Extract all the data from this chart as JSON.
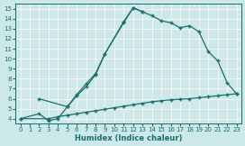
{
  "xlabel": "Humidex (Indice chaleur)",
  "bg_color": "#cce8e8",
  "line_color": "#1a6e6e",
  "grid_color": "#b0d0d0",
  "pink_grid": "#c8a0a0",
  "xlim": [
    -0.5,
    23.5
  ],
  "ylim": [
    3.5,
    15.5
  ],
  "xticks": [
    0,
    1,
    2,
    3,
    4,
    5,
    6,
    7,
    8,
    9,
    10,
    11,
    12,
    13,
    14,
    15,
    16,
    17,
    18,
    19,
    20,
    21,
    22,
    23
  ],
  "yticks": [
    4,
    5,
    6,
    7,
    8,
    9,
    10,
    11,
    12,
    13,
    14,
    15
  ],
  "line1_x": [
    0,
    2,
    3,
    4,
    5,
    6,
    7,
    8,
    9,
    11,
    12,
    13,
    14,
    15,
    16,
    17,
    18,
    19,
    20,
    21,
    22,
    23
  ],
  "line1_y": [
    4,
    4.5,
    3.8,
    4.0,
    5.2,
    6.3,
    7.2,
    8.4,
    10.5,
    13.7,
    15.1,
    14.7,
    14.3,
    13.8,
    13.6,
    13.1,
    13.3,
    12.7,
    10.7,
    9.8,
    7.6,
    6.5
  ],
  "line2_x": [
    2,
    5,
    6,
    7,
    8,
    9,
    11,
    12,
    13
  ],
  "line2_y": [
    6.0,
    5.2,
    6.4,
    7.5,
    8.5,
    10.5,
    13.6,
    15.1,
    14.7
  ],
  "line3_x": [
    0,
    3,
    4,
    5,
    6,
    7,
    8,
    9,
    10,
    11,
    12,
    13,
    14,
    15,
    16,
    17,
    18,
    19,
    20,
    21,
    22,
    23
  ],
  "line3_y": [
    4.0,
    4.0,
    4.2,
    4.35,
    4.5,
    4.65,
    4.8,
    4.95,
    5.1,
    5.25,
    5.4,
    5.55,
    5.7,
    5.8,
    5.9,
    5.95,
    6.0,
    6.1,
    6.2,
    6.3,
    6.4,
    6.5
  ],
  "tick_fontsize": 5.0,
  "label_fontsize": 6.0
}
